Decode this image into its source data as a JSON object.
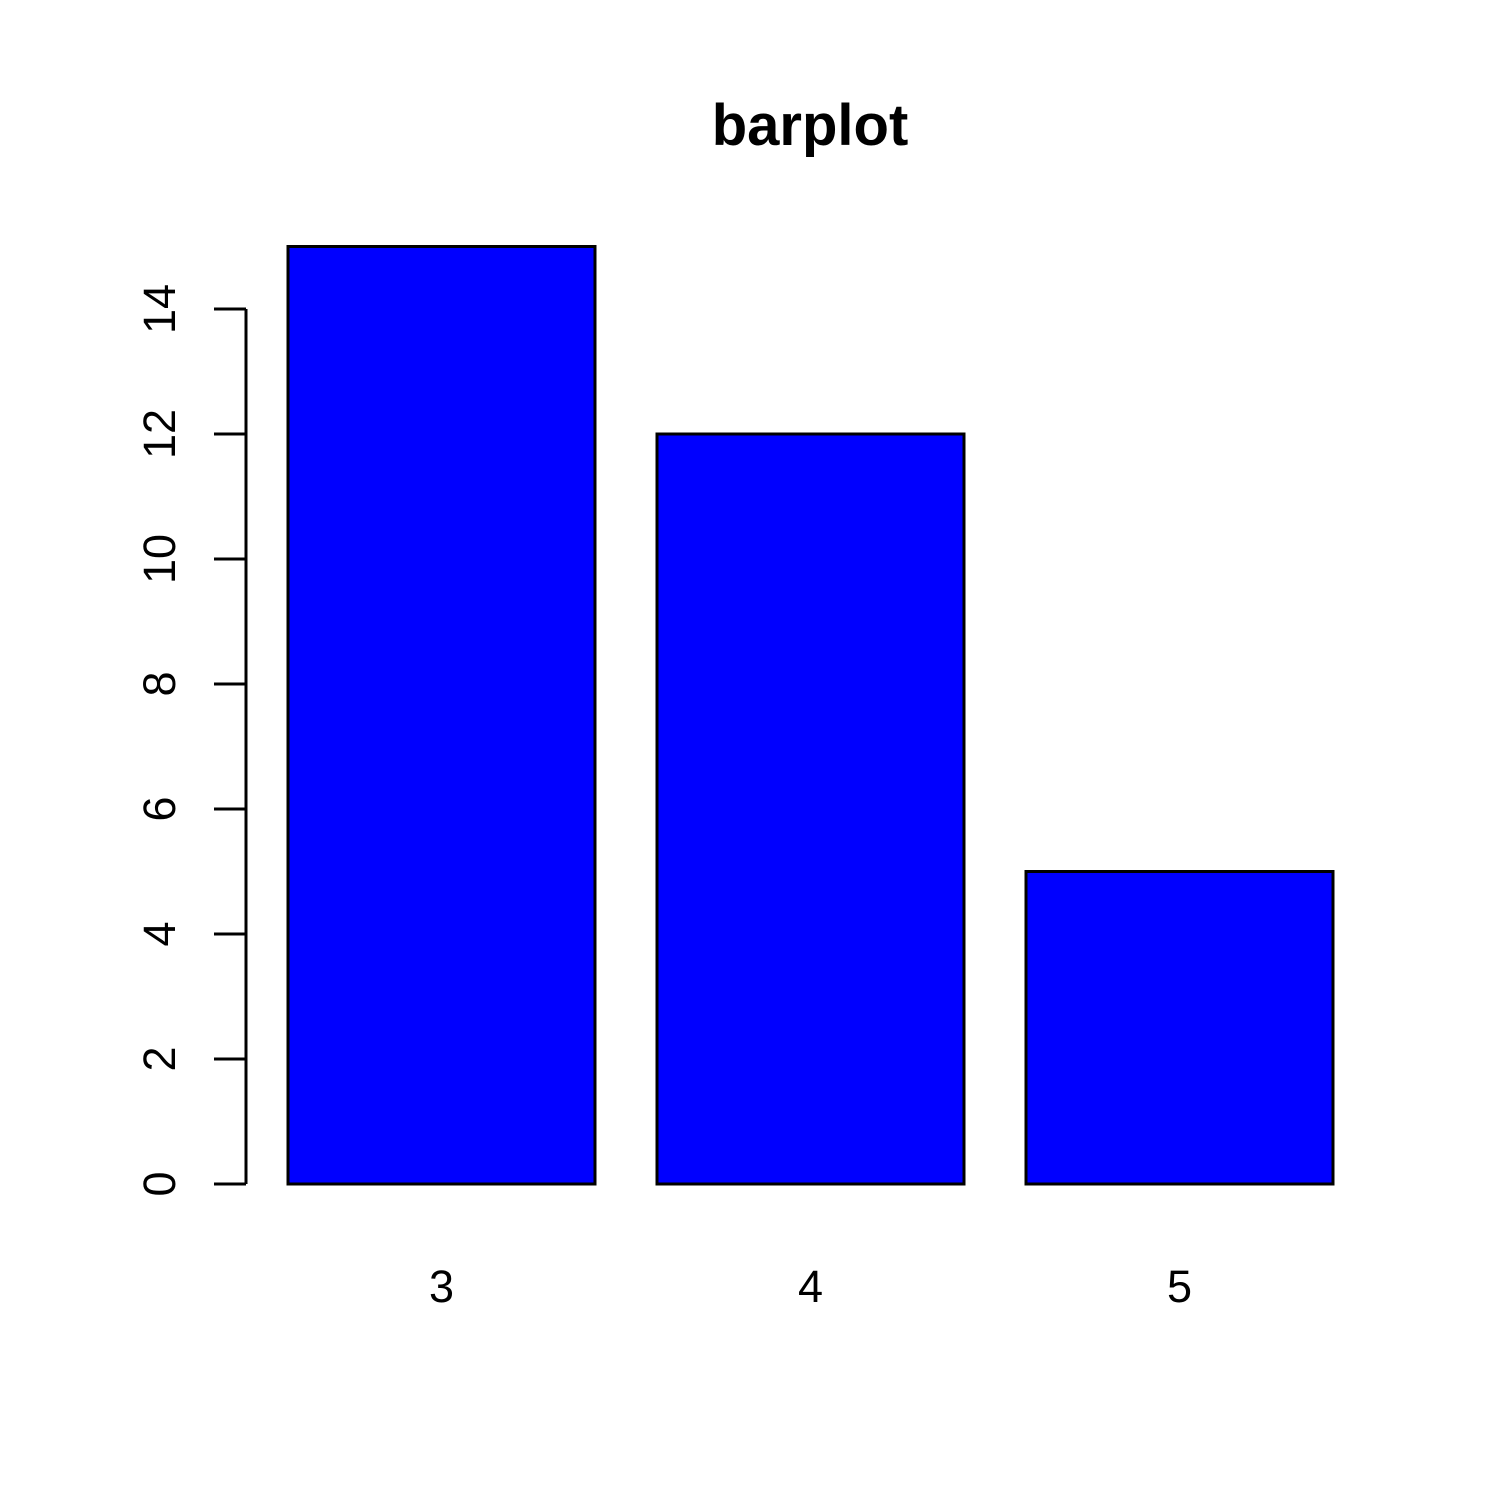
{
  "chart_data": {
    "type": "bar",
    "title": "barplot",
    "xlabel": "",
    "ylabel": "",
    "categories": [
      "3",
      "4",
      "5"
    ],
    "values": [
      15,
      12,
      5
    ],
    "ylim": [
      0,
      15
    ],
    "y_ticks": [
      0,
      2,
      4,
      6,
      8,
      10,
      12,
      14
    ],
    "bar_color": "#0000FF",
    "border_color": "#000000",
    "grid": false,
    "legend": "none"
  }
}
